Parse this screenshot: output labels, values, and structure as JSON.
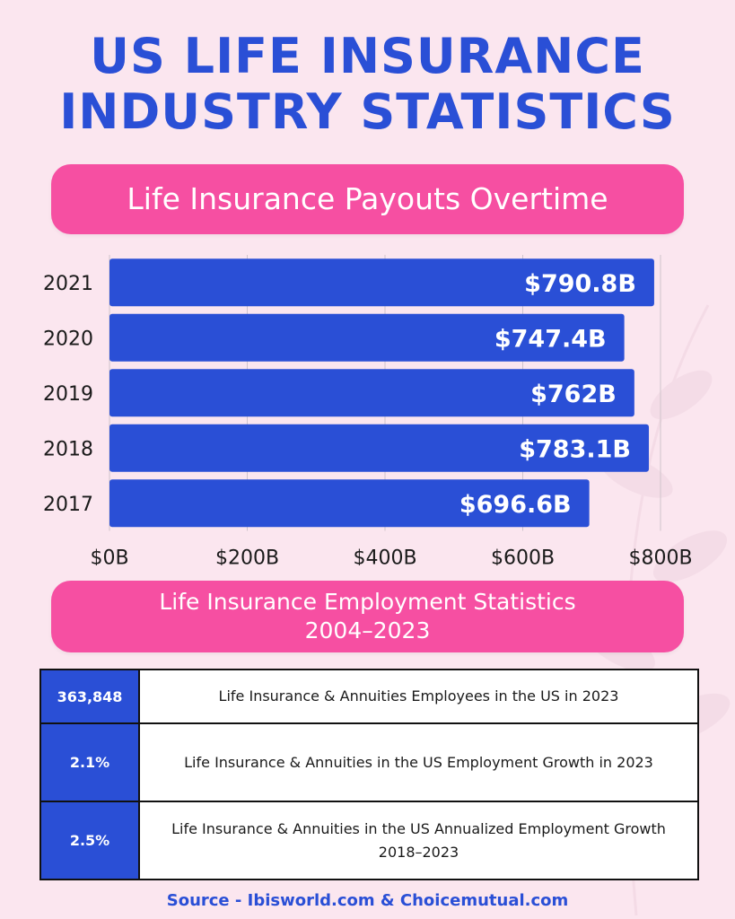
{
  "title": {
    "line1": "US LIFE INSURANCE",
    "line2": "INDUSTRY STATISTICS"
  },
  "payouts_heading": "Life Insurance Payouts Overtime",
  "employment_heading": {
    "line1": "Life Insurance Employment Statistics",
    "line2": "2004–2023"
  },
  "chart_data": {
    "type": "bar",
    "orientation": "horizontal",
    "title": "Life Insurance Payouts Overtime",
    "categories": [
      "2021",
      "2020",
      "2019",
      "2018",
      "2017"
    ],
    "values": [
      790.8,
      747.4,
      762,
      783.1,
      696.6
    ],
    "value_labels": [
      "$790.8B",
      "$747.4B",
      "$762B",
      "$783.1B",
      "$696.6B"
    ],
    "xlim": [
      0,
      800
    ],
    "xticks": [
      0,
      200,
      400,
      600,
      800
    ],
    "xtick_labels": [
      "$0B",
      "$200B",
      "$400B",
      "$600B",
      "$800B"
    ],
    "grid": true,
    "bar_color": "#2a4fd6"
  },
  "stats": [
    {
      "value": "363,848",
      "description": "Life Insurance & Annuities Employees in the US in 2023"
    },
    {
      "value": "2.1%",
      "description": "Life Insurance & Annuities in the US Employment Growth in 2023"
    },
    {
      "value": "2.5%",
      "description": "Life Insurance & Annuities in the US Annualized Employment Growth 2018–2023"
    }
  ],
  "source": "Source - Ibisworld.com & Choicemutual.com",
  "colors": {
    "background": "#fbe6ef",
    "accent_blue": "#2a4fd6",
    "accent_pink": "#f64fa2"
  }
}
